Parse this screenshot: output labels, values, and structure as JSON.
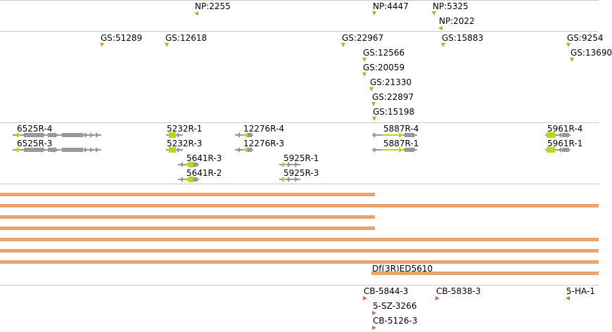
{
  "colors": {
    "np_marker": "#d4a020",
    "gs_marker": "#d4a020",
    "gene_gray": "#999999",
    "gene_yellow": "#bdd41a",
    "deletion_bar": "#eda36e",
    "cb_marker": "#e06a40"
  },
  "np_track": [
    "NP:2255",
    "NP:4447",
    "NP:5325",
    "NP:2022"
  ],
  "gs_track": [
    "GS:51289",
    "GS:12618",
    "GS:22967",
    "GS:15883",
    "GS:9254",
    "GS:12566",
    "GS:13690",
    "GS:20059",
    "GS:21330",
    "GS:22897",
    "GS:15198"
  ],
  "gene_track": [
    "6525R-4",
    "6525R-3",
    "5232R-1",
    "5232R-3",
    "12276R-4",
    "12276R-3",
    "5641R-3",
    "5641R-2",
    "5925R-1",
    "5925R-3",
    "5887R-4",
    "5887R-1",
    "5961R-4",
    "5961R-1"
  ],
  "deletion_track": {
    "labeled_bar": "Df(3R)ED5610"
  },
  "cb_track": [
    "CB-5844-3",
    "CB-5838-3",
    "5-HA-1",
    "5-SZ-3266",
    "CB-5126-3"
  ]
}
